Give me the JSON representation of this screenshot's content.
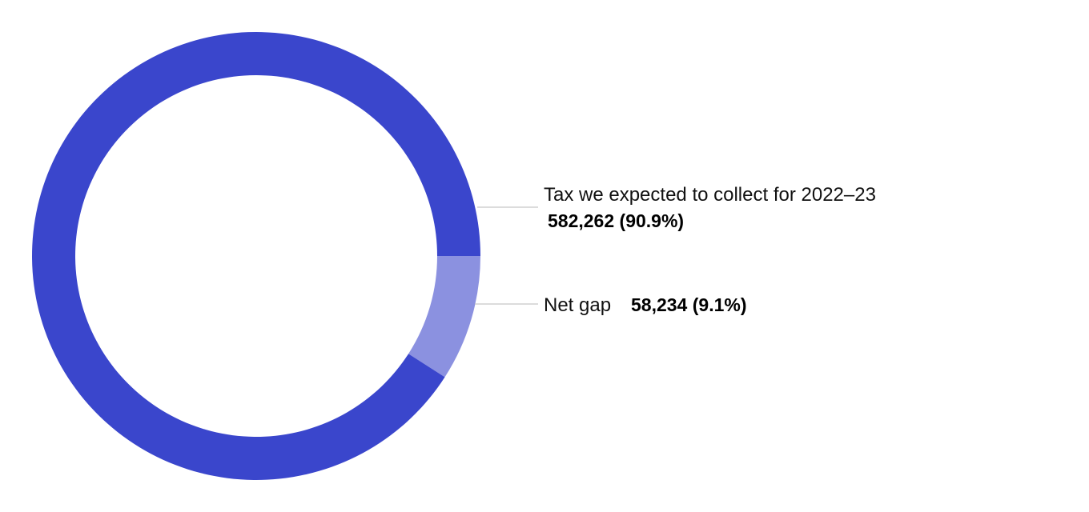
{
  "chart_data": {
    "type": "pie",
    "variant": "donut",
    "start_angle_deg": 90,
    "direction": "clockwise",
    "slices": [
      {
        "label": "Net gap",
        "value": 58234,
        "percent": 9.1,
        "value_label": "58,234 (9.1%)",
        "color": "#8b91e0"
      },
      {
        "label": "Tax we expected to collect for 2022–23",
        "value": 582262,
        "percent": 90.9,
        "value_label": "582,262 (90.9%)",
        "color": "#3a46cc"
      }
    ],
    "legend": "none"
  }
}
